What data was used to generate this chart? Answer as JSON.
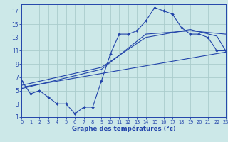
{
  "xlabel": "Graphe des températures (°c)",
  "bg_color": "#cce8e8",
  "grid_color": "#aacccc",
  "line_color": "#2244aa",
  "xlim": [
    0,
    23
  ],
  "ylim": [
    1,
    18
  ],
  "xticks": [
    0,
    1,
    2,
    3,
    4,
    5,
    6,
    7,
    8,
    9,
    10,
    11,
    12,
    13,
    14,
    15,
    16,
    17,
    18,
    19,
    20,
    21,
    22,
    23
  ],
  "yticks": [
    1,
    3,
    5,
    7,
    9,
    11,
    13,
    15,
    17
  ],
  "actual_x": [
    0,
    1,
    2,
    3,
    4,
    5,
    6,
    7,
    8,
    9,
    10,
    11,
    12,
    13,
    14,
    15,
    16,
    17,
    18,
    19,
    20,
    21,
    22,
    23
  ],
  "actual_y": [
    6.5,
    4.5,
    5.0,
    4.0,
    3.0,
    3.0,
    1.5,
    2.5,
    2.5,
    6.5,
    10.5,
    13.5,
    13.5,
    14.0,
    15.5,
    17.5,
    17.0,
    16.5,
    14.5,
    13.5,
    13.5,
    13.0,
    11.0,
    11.0
  ],
  "line1_x": [
    0,
    23
  ],
  "line1_y": [
    5.5,
    10.8
  ],
  "line2_x": [
    0,
    9,
    14,
    19,
    23
  ],
  "line2_y": [
    5.3,
    8.2,
    13.5,
    14.0,
    13.5
  ],
  "line3_x": [
    0,
    9,
    14,
    19,
    22,
    23
  ],
  "line3_y": [
    5.8,
    8.5,
    13.0,
    14.2,
    13.2,
    11.0
  ]
}
